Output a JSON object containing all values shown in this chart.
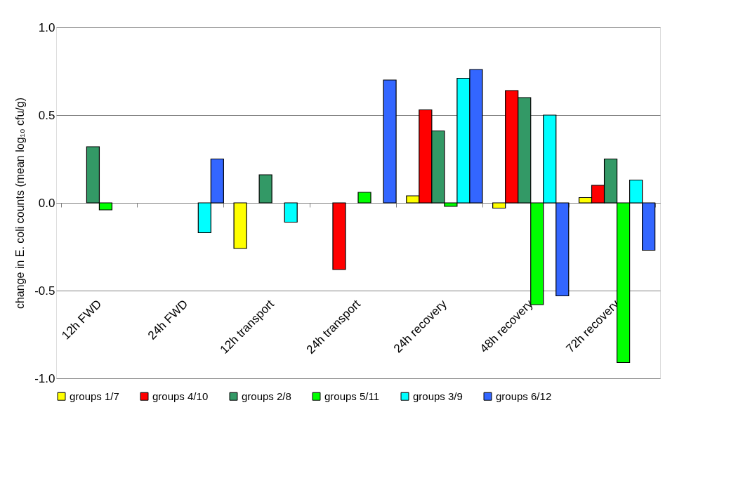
{
  "chart_data": {
    "type": "bar",
    "ylabel": "change in E. coli counts (mean log₁₀ cfu/g)",
    "categories": [
      "12h FWD",
      "24h FWD",
      "12h transport",
      "24h transport",
      "24h recovery",
      "48h recovery",
      "72h recovery"
    ],
    "series": [
      {
        "name": "groups 1/7",
        "color": "#ffff00",
        "values": [
          null,
          null,
          -0.26,
          null,
          0.04,
          -0.03,
          0.03
        ]
      },
      {
        "name": "groups 4/10",
        "color": "#ff0000",
        "values": [
          null,
          null,
          null,
          -0.38,
          0.53,
          0.64,
          0.1
        ]
      },
      {
        "name": "groups 2/8",
        "color": "#339966",
        "values": [
          0.32,
          null,
          0.16,
          null,
          0.41,
          0.6,
          0.25
        ]
      },
      {
        "name": "groups 5/11",
        "color": "#00ff00",
        "values": [
          -0.04,
          null,
          null,
          0.06,
          -0.02,
          -0.58,
          -0.91
        ]
      },
      {
        "name": "groups 3/9",
        "color": "#00ffff",
        "values": [
          null,
          -0.17,
          -0.11,
          null,
          0.71,
          0.5,
          0.13
        ]
      },
      {
        "name": "groups 6/12",
        "color": "#3366ff",
        "values": [
          null,
          0.25,
          null,
          0.7,
          0.76,
          -0.53,
          -0.27
        ]
      }
    ],
    "ylim": [
      -1.0,
      1.0
    ],
    "yticks": [
      {
        "value": -1.0,
        "label": "-1.0"
      },
      {
        "value": -0.5,
        "label": "-0.5"
      },
      {
        "value": 0,
        "label": "0.0"
      },
      {
        "value": 0.5,
        "label": "0.5"
      },
      {
        "value": 1.0,
        "label": "1.0"
      }
    ],
    "grid": "y",
    "legend": "bottom"
  }
}
